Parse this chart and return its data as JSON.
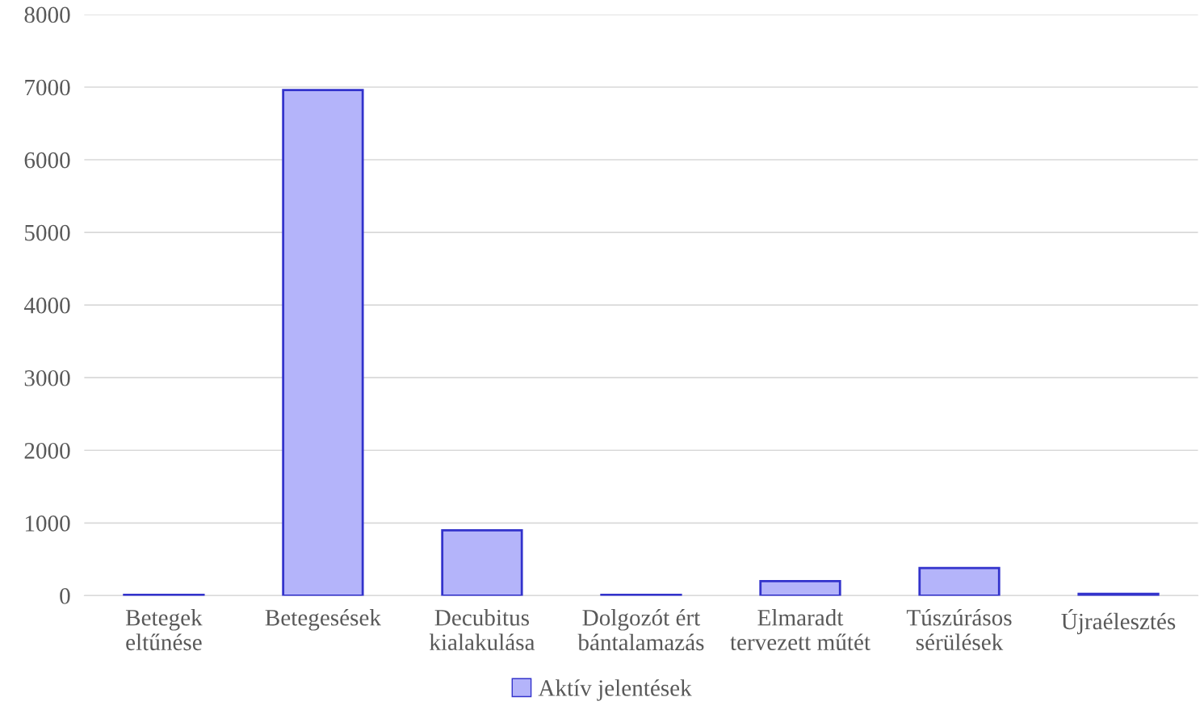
{
  "chart_data": {
    "type": "bar",
    "categories": [
      "Betegek\neltűnése",
      "Betegesések",
      "Decubitus\nkialakulása",
      "Dolgozót ért\nbántalamazás",
      "Elmaradt\ntervezett műtét",
      "Túszúrásos\nsérülések",
      "Újraélesztés"
    ],
    "series": [
      {
        "name": "Aktív jelentések",
        "color": "#b4b4fa",
        "values": [
          10,
          6960,
          900,
          10,
          200,
          380,
          25
        ]
      }
    ],
    "ylim": [
      0,
      8000
    ],
    "yticks": [
      0,
      1000,
      2000,
      3000,
      4000,
      5000,
      6000,
      7000,
      8000
    ],
    "grid": "y",
    "legend": "bottom"
  }
}
